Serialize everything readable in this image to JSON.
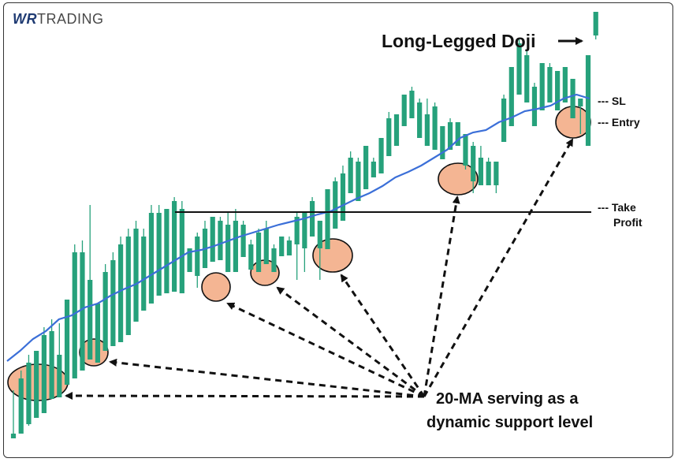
{
  "brand": {
    "logo_prefix": "WR",
    "logo_text": "TRADING"
  },
  "annotations": {
    "doji_label": "Long-Legged Doji",
    "sl_label": "--- SL",
    "entry_label": "--- Entry",
    "take_profit_line1": "--- Take",
    "take_profit_line2": "Profit",
    "ma_line1": "20-MA serving as a",
    "ma_line2": "dynamic support level"
  },
  "colors": {
    "bull": "#26a17b",
    "bear": "#e8424f",
    "ma": "#3b6fd8",
    "highlight": "#f4b593",
    "background": "#ffffff"
  },
  "chart_data": {
    "type": "candlestick",
    "title": "",
    "xlabel": "",
    "ylabel": "",
    "grid": false,
    "ylim": [
      0,
      560
    ],
    "candles": [
      [
        14,
        20,
        20,
        75
      ],
      [
        20,
        90,
        40,
        100
      ],
      [
        32,
        110,
        30,
        120
      ],
      [
        40,
        125,
        90,
        125
      ],
      [
        46,
        145,
        110,
        155
      ],
      [
        64,
        150,
        105,
        165
      ],
      [
        66,
        120,
        145,
        160
      ],
      [
        82,
        190,
        120,
        190
      ],
      [
        90,
        250,
        160,
        260
      ],
      [
        100,
        250,
        205,
        265
      ],
      [
        114,
        215,
        270,
        310
      ],
      [
        110,
        185,
        120,
        185
      ],
      [
        125,
        225,
        195,
        235
      ],
      [
        131,
        240,
        210,
        250
      ],
      [
        136,
        260,
        230,
        270
      ],
      [
        145,
        270,
        210,
        280
      ],
      [
        162,
        280,
        240,
        290
      ],
      [
        176,
        270,
        245,
        280
      ],
      [
        185,
        300,
        225,
        310
      ],
      [
        195,
        300,
        260,
        310
      ],
      [
        198,
        305,
        245,
        305
      ],
      [
        200,
        315,
        255,
        320
      ],
      [
        198,
        305,
        280,
        315
      ],
      [
        225,
        255,
        230,
        255
      ],
      [
        220,
        270,
        205,
        275
      ],
      [
        230,
        280,
        240,
        290
      ],
      [
        238,
        295,
        250,
        295
      ],
      [
        240,
        290,
        260,
        295
      ],
      [
        225,
        285,
        255,
        300
      ],
      [
        225,
        290,
        245,
        305
      ],
      [
        244,
        285,
        255,
        290
      ],
      [
        228,
        260,
        230,
        266
      ],
      [
        225,
        275,
        235,
        280
      ],
      [
        235,
        280,
        250,
        290
      ],
      [
        225,
        255,
        225,
        260
      ],
      [
        245,
        270,
        255,
        270
      ],
      [
        246,
        265,
        260,
        270
      ],
      [
        260,
        295,
        215,
        300
      ],
      [
        255,
        300,
        225,
        300
      ],
      [
        270,
        315,
        295,
        320
      ],
      [
        255,
        290,
        215,
        290
      ],
      [
        254,
        330,
        280,
        330
      ],
      [
        280,
        340,
        303,
        345
      ],
      [
        290,
        350,
        305,
        360
      ],
      [
        325,
        370,
        345,
        378
      ],
      [
        315,
        365,
        335,
        370
      ],
      [
        330,
        385,
        340,
        385
      ],
      [
        345,
        365,
        350,
        370
      ],
      [
        350,
        395,
        370,
        395
      ],
      [
        372,
        420,
        400,
        428
      ],
      [
        385,
        425,
        410,
        425
      ],
      [
        410,
        450,
        410,
        450
      ],
      [
        420,
        455,
        450,
        460
      ],
      [
        395,
        440,
        440,
        445
      ],
      [
        385,
        425,
        420,
        445
      ],
      [
        380,
        435,
        415,
        440
      ],
      [
        368,
        410,
        375,
        410
      ],
      [
        380,
        415,
        395,
        420
      ],
      [
        385,
        415,
        395,
        415
      ],
      [
        360,
        400,
        355,
        400
      ],
      [
        340,
        385,
        325,
        390
      ],
      [
        335,
        370,
        340,
        385
      ],
      [
        335,
        365,
        345,
        370
      ],
      [
        335,
        365,
        325,
        365
      ],
      [
        390,
        445,
        390,
        450
      ],
      [
        410,
        485,
        425,
        485
      ],
      [
        450,
        515,
        470,
        520
      ],
      [
        440,
        500,
        450,
        505
      ],
      [
        410,
        460,
        420,
        465
      ],
      [
        430,
        490,
        435,
        490
      ],
      [
        440,
        485,
        450,
        490
      ],
      [
        430,
        480,
        430,
        480
      ],
      [
        440,
        485,
        445,
        480
      ],
      [
        420,
        470,
        435,
        470
      ],
      [
        435,
        445,
        400,
        440
      ],
      [
        385,
        500,
        430,
        500
      ],
      [
        525,
        555,
        520,
        535
      ]
    ],
    "ma_20": [
      112,
      125,
      140,
      150,
      165,
      170,
      180,
      185,
      195,
      203,
      210,
      220,
      230,
      240,
      250,
      253,
      258,
      264,
      270,
      275,
      280,
      285,
      289,
      293,
      298,
      302,
      310,
      318,
      325,
      334,
      345,
      352,
      360,
      370,
      380,
      395,
      402,
      405,
      415,
      421,
      429,
      432,
      436,
      445,
      450,
      445
    ],
    "resistance_level": 330,
    "highlights": [
      110,
      135,
      213,
      245,
      265,
      370,
      430
    ],
    "levels": {
      "stop_loss": 455,
      "entry": 428,
      "take_profit": 316
    }
  }
}
